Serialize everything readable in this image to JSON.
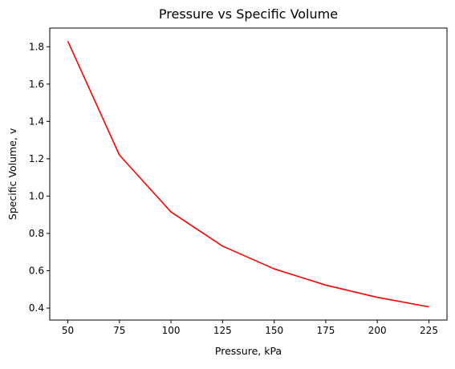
{
  "chart_data": {
    "type": "line",
    "title": "Pressure vs Specific Volume",
    "xlabel": "Pressure, kPa",
    "ylabel": "Specific Volume, v",
    "xlim": [
      41.25,
      233.75
    ],
    "ylim": [
      0.3358,
      1.9
    ],
    "xticks": [
      50,
      75,
      100,
      125,
      150,
      175,
      200,
      225
    ],
    "yticks": [
      0.4,
      0.6,
      0.8,
      1.0,
      1.2,
      1.4,
      1.6,
      1.8
    ],
    "grid": false,
    "series": [
      {
        "color": "#ff0000",
        "x": [
          50,
          75,
          100,
          125,
          150,
          175,
          200,
          225
        ],
        "y": [
          1.83,
          1.22,
          0.915,
          0.732,
          0.61,
          0.523,
          0.4575,
          0.4067
        ]
      }
    ]
  }
}
